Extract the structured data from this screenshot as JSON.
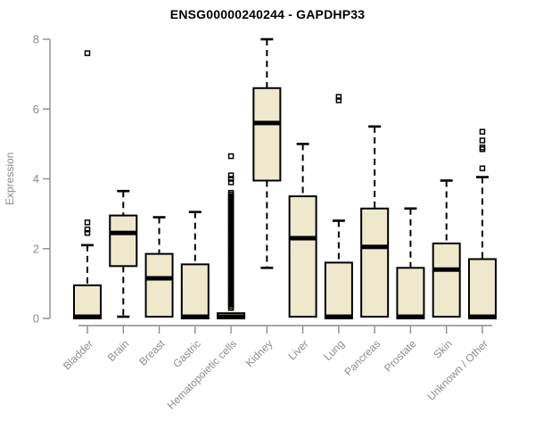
{
  "page": {
    "background": "#ffffff"
  },
  "chart_data": {
    "type": "boxplot",
    "title": "ENSG00000240244 - GAPDHP33",
    "xlabel": "",
    "ylabel": "Expression",
    "ylim": [
      0,
      8
    ],
    "yticks": [
      0,
      2,
      4,
      6,
      8
    ],
    "grid": false,
    "legend": "none",
    "colors": {
      "box_fill": "#EEE8CD",
      "box_stroke": "#000000",
      "median": "#000000",
      "whisker": "#000000",
      "outlier": "#000000",
      "axis": "#8c8c8c",
      "tick_label": "#8c8c8c",
      "title": "#000000"
    },
    "categories": [
      "Bladder",
      "Brain",
      "Breast",
      "Gastric",
      "Hematopoietic cells",
      "Kidney",
      "Liver",
      "Lung",
      "Pancreas",
      "Prostate",
      "Skin",
      "Unknown / Other"
    ],
    "boxes": [
      {
        "label": "Bladder",
        "q1": 0,
        "median": 0.05,
        "q3": 0.95,
        "whisker_low": 0,
        "whisker_high": 2.1,
        "outliers": [
          2.45,
          2.55,
          2.75,
          7.6
        ]
      },
      {
        "label": "Brain",
        "q1": 1.5,
        "median": 2.45,
        "q3": 2.95,
        "whisker_low": 0.05,
        "whisker_high": 3.65,
        "outliers": []
      },
      {
        "label": "Breast",
        "q1": 0.05,
        "median": 1.15,
        "q3": 1.85,
        "whisker_low": 0.05,
        "whisker_high": 2.9,
        "outliers": []
      },
      {
        "label": "Gastric",
        "q1": 0,
        "median": 0.05,
        "q3": 1.55,
        "whisker_low": 0,
        "whisker_high": 3.05,
        "outliers": []
      },
      {
        "label": "Hematopoietic cells",
        "q1": 0,
        "median": 0.05,
        "q3": 0.15,
        "whisker_low": 0,
        "whisker_high": 0.15,
        "outliers": [
          0.3,
          0.35,
          0.4,
          0.45,
          0.5,
          0.55,
          0.6,
          0.65,
          0.7,
          0.75,
          0.8,
          0.85,
          0.9,
          0.95,
          1.0,
          1.05,
          1.1,
          1.15,
          1.2,
          1.25,
          1.3,
          1.35,
          1.4,
          1.45,
          1.5,
          1.55,
          1.6,
          1.65,
          1.7,
          1.75,
          1.8,
          1.85,
          1.9,
          1.95,
          2.0,
          2.05,
          2.1,
          2.15,
          2.2,
          2.25,
          2.3,
          2.35,
          2.4,
          2.45,
          2.5,
          2.55,
          2.6,
          2.65,
          2.7,
          2.75,
          2.8,
          2.85,
          2.9,
          2.95,
          3.0,
          3.05,
          3.1,
          3.15,
          3.2,
          3.25,
          3.3,
          3.35,
          3.4,
          3.45,
          3.5,
          3.55,
          3.6,
          3.9,
          4.0,
          4.1,
          4.65
        ]
      },
      {
        "label": "Kidney",
        "q1": 3.95,
        "median": 5.6,
        "q3": 6.6,
        "whisker_low": 1.45,
        "whisker_high": 8.0,
        "outliers": []
      },
      {
        "label": "Liver",
        "q1": 0.05,
        "median": 2.3,
        "q3": 3.5,
        "whisker_low": 0.05,
        "whisker_high": 5.0,
        "outliers": []
      },
      {
        "label": "Lung",
        "q1": 0,
        "median": 0.05,
        "q3": 1.6,
        "whisker_low": 0,
        "whisker_high": 2.8,
        "outliers": [
          6.25,
          6.35
        ]
      },
      {
        "label": "Pancreas",
        "q1": 0.05,
        "median": 2.05,
        "q3": 3.15,
        "whisker_low": 0.05,
        "whisker_high": 5.5,
        "outliers": []
      },
      {
        "label": "Prostate",
        "q1": 0,
        "median": 0.05,
        "q3": 1.45,
        "whisker_low": 0,
        "whisker_high": 3.15,
        "outliers": []
      },
      {
        "label": "Skin",
        "q1": 0.05,
        "median": 1.4,
        "q3": 2.15,
        "whisker_low": 0.05,
        "whisker_high": 3.95,
        "outliers": []
      },
      {
        "label": "Unknown / Other",
        "q1": 0,
        "median": 0.05,
        "q3": 1.7,
        "whisker_low": 0,
        "whisker_high": 4.05,
        "outliers": [
          4.3,
          4.85,
          4.9,
          5.1,
          5.35
        ]
      }
    ]
  }
}
